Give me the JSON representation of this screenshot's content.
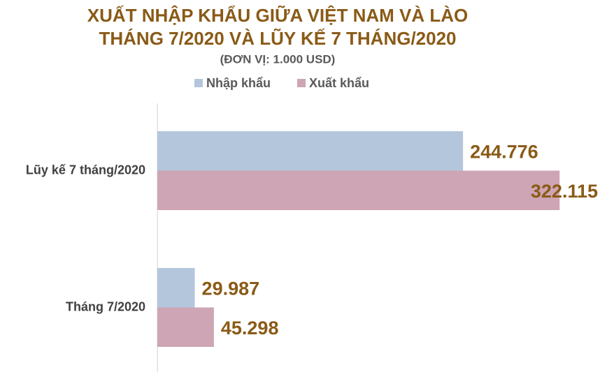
{
  "chart_data": {
    "type": "bar",
    "orientation": "horizontal",
    "title": [
      "XUẤT NHẬP KHẨU GIỮA VIỆT NAM VÀ LÀO",
      "THÁNG 7/2020 VÀ LŨY KẾ 7 THÁNG/2020"
    ],
    "subtitle": "(ĐƠN VỊ: 1.000 USD)",
    "categories": [
      "Lũy kế 7 tháng/2020",
      "Tháng 7/2020"
    ],
    "series": [
      {
        "name": "Nhập khẩu",
        "color": "#b4c6dc",
        "values": [
          244776,
          29987
        ],
        "value_labels": [
          "244.776",
          "29.987"
        ]
      },
      {
        "name": "Xuất khẩu",
        "color": "#cda5b4",
        "values": [
          322115,
          45298
        ],
        "value_labels": [
          "322.115",
          "45.298"
        ]
      }
    ],
    "xlim": [
      0,
      350000
    ],
    "legend": "top"
  }
}
